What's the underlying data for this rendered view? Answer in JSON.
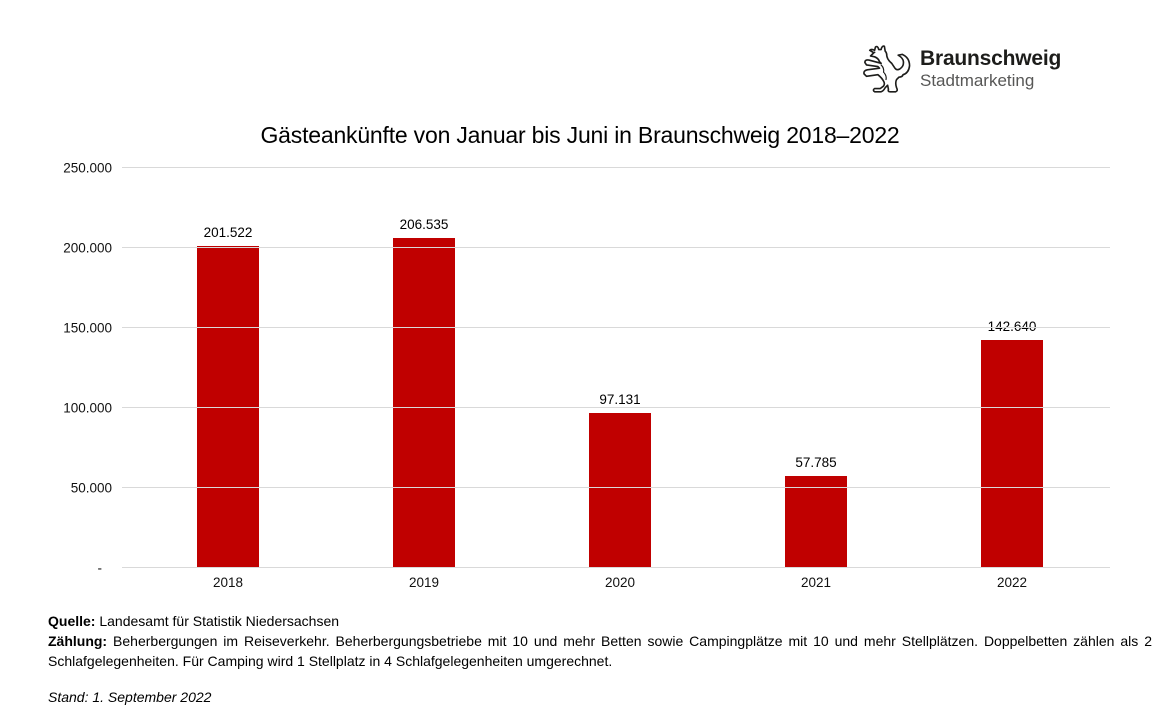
{
  "logo": {
    "name": "Braunschweig",
    "subtitle": "Stadtmarketing",
    "icon": "braunschweig-lion",
    "name_color": "#1d1d1b",
    "subtitle_color": "#575756"
  },
  "chart_data": {
    "type": "bar",
    "title": "Gästeankünfte von Januar bis Juni in Braunschweig 2018–2022",
    "categories": [
      "2018",
      "2019",
      "2020",
      "2021",
      "2022"
    ],
    "values": [
      201522,
      206535,
      97131,
      57785,
      142640
    ],
    "value_labels": [
      "201.522",
      "206.535",
      "97.131",
      "57.785",
      "142.640"
    ],
    "xlabel": "",
    "ylabel": "",
    "ylim": [
      0,
      250000
    ],
    "y_ticks": [
      {
        "label": "250.000",
        "value": 250000
      },
      {
        "label": "200.000",
        "value": 200000
      },
      {
        "label": "150.000",
        "value": 150000
      },
      {
        "label": "100.000",
        "value": 100000
      },
      {
        "label": "50.000",
        "value": 50000
      },
      {
        "label": "-",
        "value": 0
      }
    ],
    "grid": true,
    "legend": "none",
    "bar_color": "#c00000",
    "gridline_color": "#d9d9d9",
    "label_color": "#000000"
  },
  "footer": {
    "source_label": "Quelle:",
    "source_text": "Landesamt für Statistik Niedersachsen",
    "counting_label": "Zählung:",
    "counting_text": "Beherbergungen im Reiseverkehr. Beherbergungsbetriebe mit 10 und mehr Betten sowie Campingplätze mit 10 und mehr Stellplätzen. Doppelbetten zählen als 2 Schlafgelegenheiten. Für Camping wird 1 Stellplatz in 4 Schlafgelegenheiten umgerechnet.",
    "stand_text": "Stand: 1. September 2022"
  }
}
